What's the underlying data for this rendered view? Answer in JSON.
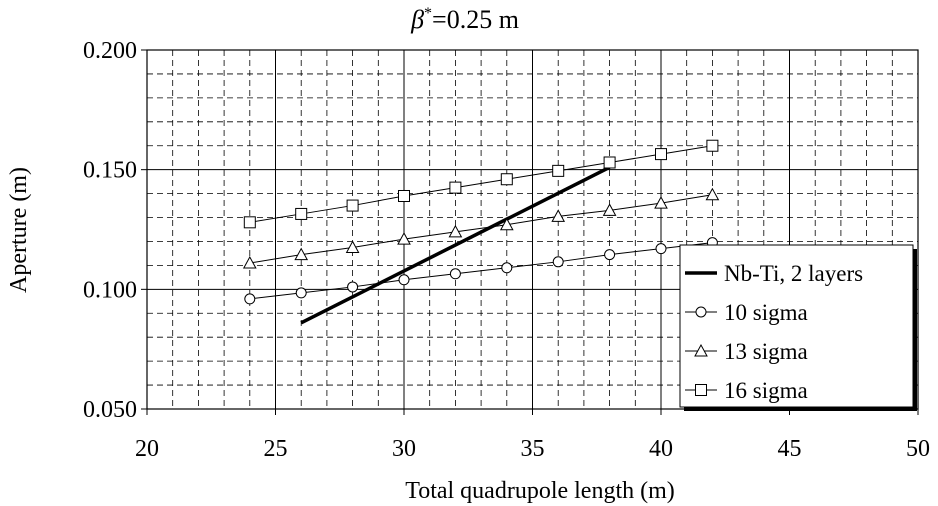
{
  "chart_data": {
    "type": "line",
    "title_symbol": "β",
    "title_superscript": "*",
    "title_rest": "=0.25 m",
    "xlabel": "Total quadrupole length (m)",
    "ylabel": "Aperture (m)",
    "xlim": [
      20,
      50
    ],
    "ylim": [
      0.05,
      0.2
    ],
    "x_ticks": [
      20,
      25,
      30,
      35,
      40,
      45,
      50
    ],
    "x_tick_labels": [
      "20",
      "25",
      "30",
      "35",
      "40",
      "45",
      "50"
    ],
    "y_ticks": [
      0.05,
      0.1,
      0.15,
      0.2
    ],
    "y_tick_labels": [
      "0.050",
      "0.100",
      "0.150",
      "0.200"
    ],
    "grid": true,
    "legend_position": "bottom-right",
    "series": [
      {
        "name": "Nb-Ti, 2 layers",
        "marker": "none",
        "x": [
          26,
          38
        ],
        "y": [
          0.086,
          0.151
        ]
      },
      {
        "name": "10 sigma",
        "marker": "circle",
        "x": [
          24,
          26,
          28,
          30,
          32,
          34,
          36,
          38,
          40,
          42
        ],
        "y": [
          0.096,
          0.0985,
          0.101,
          0.104,
          0.1065,
          0.109,
          0.1115,
          0.1145,
          0.117,
          0.1195
        ]
      },
      {
        "name": "13 sigma",
        "marker": "triangle",
        "x": [
          24,
          26,
          28,
          30,
          32,
          34,
          36,
          38,
          40,
          42
        ],
        "y": [
          0.111,
          0.1145,
          0.1175,
          0.121,
          0.124,
          0.127,
          0.1305,
          0.133,
          0.136,
          0.1395
        ]
      },
      {
        "name": "16 sigma",
        "marker": "square",
        "x": [
          24,
          26,
          28,
          30,
          32,
          34,
          36,
          38,
          40,
          42
        ],
        "y": [
          0.128,
          0.1315,
          0.135,
          0.139,
          0.1425,
          0.146,
          0.1495,
          0.153,
          0.1565,
          0.16
        ]
      }
    ]
  }
}
